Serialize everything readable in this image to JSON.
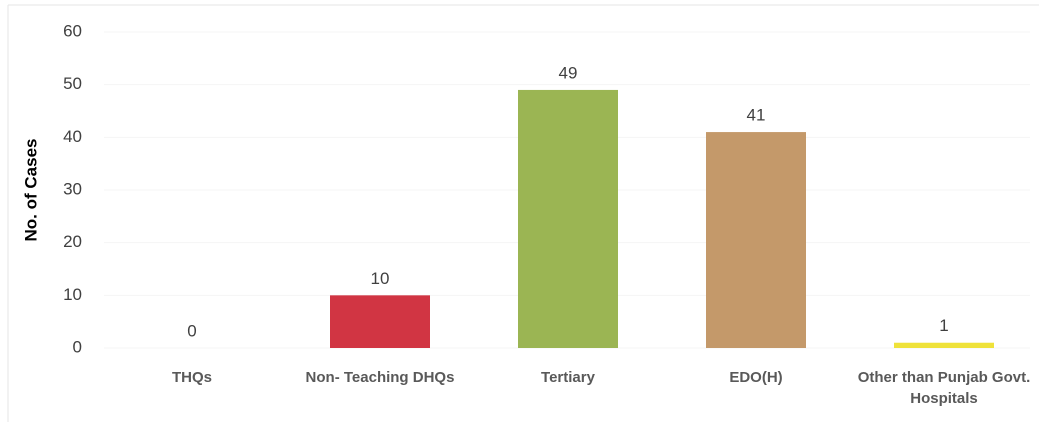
{
  "chart_data": {
    "type": "bar",
    "y_label": "No. of Cases",
    "categories": [
      "THQs",
      "Non- Teaching DHQs",
      "Tertiary",
      "EDO(H)",
      "Other than Punjab Govt. Hospitals"
    ],
    "values": [
      0,
      10,
      49,
      41,
      1
    ],
    "colors": [
      "#c0c0c0",
      "#d13543",
      "#9bb553",
      "#c4996a",
      "#efe23a"
    ],
    "ylim": [
      0,
      60
    ],
    "yticks": [
      0,
      10,
      20,
      30,
      40,
      50,
      60
    ],
    "grid": true
  }
}
